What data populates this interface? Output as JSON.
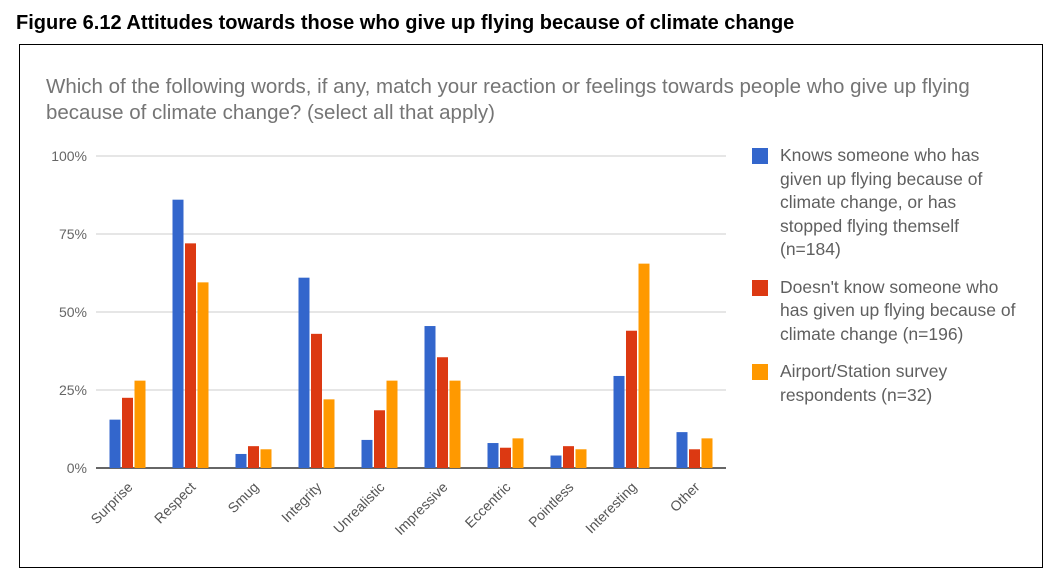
{
  "figure_title": "Figure 6.12 Attitudes towards those who give up flying because of climate change",
  "chart_data": {
    "type": "bar",
    "title": "Which of the following words, if any, match your reaction or feelings towards people who give up flying because of climate change? (select all that apply)",
    "categories": [
      "Surprise",
      "Respect",
      "Smug",
      "Integrity",
      "Unrealistic",
      "Impressive",
      "Eccentric",
      "Pointless",
      "Interesting",
      "Other"
    ],
    "series": [
      {
        "name": "Knows someone who has given up flying because of climate change, or has stopped flying themself (n=184)",
        "color": "#3366cc",
        "values": [
          15.5,
          86,
          4.5,
          61,
          9,
          45.5,
          8,
          4,
          29.5,
          11.5
        ]
      },
      {
        "name": "Doesn't know someone who has given up flying because of climate change (n=196)",
        "color": "#dc3912",
        "values": [
          22.5,
          72,
          7,
          43,
          18.5,
          35.5,
          6.5,
          7,
          44,
          6
        ]
      },
      {
        "name": "Airport/Station survey respondents (n=32)",
        "color": "#ff9900",
        "values": [
          28,
          59.5,
          6,
          22,
          28,
          28,
          9.5,
          6,
          65.5,
          9.5
        ]
      }
    ],
    "ylim": [
      0,
      100
    ],
    "yticks": [
      "0%",
      "25%",
      "50%",
      "75%",
      "100%"
    ],
    "ytick_values": [
      0,
      25,
      50,
      75,
      100
    ],
    "grid": true,
    "legend_position": "right",
    "xlabel": "",
    "ylabel": ""
  }
}
